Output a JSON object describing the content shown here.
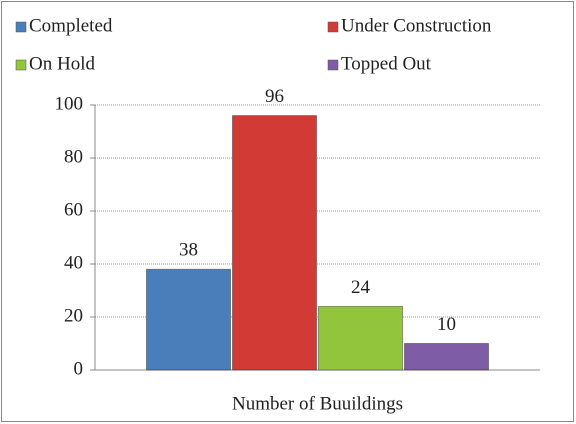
{
  "chart_data": {
    "type": "bar",
    "categories": [
      "Number of Buuildings"
    ],
    "series": [
      {
        "name": "Completed",
        "color": "#4a7ebb",
        "values": [
          38
        ]
      },
      {
        "name": "Under Construction",
        "color": "#d23a36",
        "values": [
          96
        ]
      },
      {
        "name": "On Hold",
        "color": "#92c43c",
        "values": [
          24
        ]
      },
      {
        "name": "Topped Out",
        "color": "#7f5ca6",
        "values": [
          10
        ]
      }
    ],
    "ylim": [
      0,
      100
    ],
    "yticks": [
      0,
      20,
      40,
      60,
      80,
      100
    ],
    "grid": true,
    "legend": "top"
  }
}
